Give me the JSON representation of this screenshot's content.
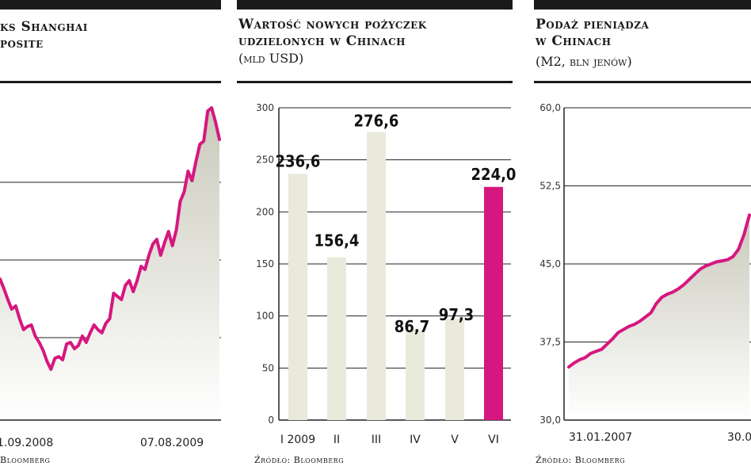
{
  "panel1": {
    "title_line1": "ks Shanghai",
    "title_line2": "posite",
    "source": "Bloomberg"
  },
  "panel2": {
    "title_line1": "Wartość nowych pożyczek",
    "title_line2": "udzielonych w Chinach",
    "subtitle": "(mld USD)",
    "source": "Źródło: Bloomberg"
  },
  "panel3": {
    "title_line1": "Podaż pieniądza",
    "title_line2": "w Chinach",
    "subtitle": "(M2, bln jenów)",
    "source": "Źródło: Bloomberg"
  },
  "colors": {
    "accent": "#d6177f",
    "bar": "#e9e9dc",
    "ink": "#1a1a1a",
    "area_top": "#c9c9bb"
  },
  "chart_data": [
    {
      "type": "area",
      "title": "",
      "xlabel": "",
      "ylabel": "",
      "x_ticks": [
        "1.09.2008",
        "07.08.2009"
      ],
      "grid": true,
      "series": [
        {
          "values": [
            2390,
            2330,
            2260,
            2200,
            2220,
            2140,
            2070,
            2090,
            2100,
            2030,
            1990,
            1940,
            1870,
            1820,
            1890,
            1900,
            1880,
            1980,
            1990,
            1950,
            1970,
            2030,
            1990,
            2050,
            2100,
            2070,
            2050,
            2110,
            2140,
            2300,
            2280,
            2260,
            2350,
            2380,
            2310,
            2380,
            2470,
            2450,
            2540,
            2610,
            2640,
            2540,
            2620,
            2690,
            2600,
            2700,
            2880,
            2940,
            3070,
            3010,
            3130,
            3240,
            3260,
            3450,
            3470,
            3380,
            3270
          ]
        }
      ]
    },
    {
      "type": "bar",
      "title": "Wartość nowych pożyczek udzielonych w Chinach",
      "ylabel": "(mld USD)",
      "categories": [
        "I 2009",
        "II",
        "III",
        "IV",
        "V",
        "VI"
      ],
      "values": [
        236.6,
        156.4,
        276.6,
        86.7,
        97.3,
        224.0
      ],
      "value_labels": [
        "236,6",
        "156,4",
        "276,6",
        "86,7",
        "97,3",
        "224,0"
      ],
      "highlight_index": 5,
      "ylim": [
        0,
        300
      ],
      "yticks": [
        "0",
        "50",
        "100",
        "150",
        "200",
        "250",
        "300"
      ],
      "grid": true
    },
    {
      "type": "area",
      "title": "Podaż pieniądza w Chinach",
      "ylabel": "(M2, bln jenów)",
      "ylim": [
        30.0,
        60.0
      ],
      "yticks": [
        "30,0",
        "37,5",
        "45,0",
        "52,5",
        "60,0"
      ],
      "x_ticks": [
        "31.01.2007",
        "30.0"
      ],
      "grid": true,
      "series": [
        {
          "values": [
            35.1,
            35.5,
            35.8,
            36.0,
            36.4,
            36.6,
            36.8,
            37.3,
            37.8,
            38.4,
            38.7,
            39.0,
            39.2,
            39.5,
            39.9,
            40.3,
            41.2,
            41.8,
            42.1,
            42.3,
            42.6,
            43.0,
            43.5,
            44.0,
            44.5,
            44.8,
            45.0,
            45.2,
            45.3,
            45.4,
            45.7,
            46.4,
            47.8,
            49.7
          ]
        }
      ]
    }
  ]
}
